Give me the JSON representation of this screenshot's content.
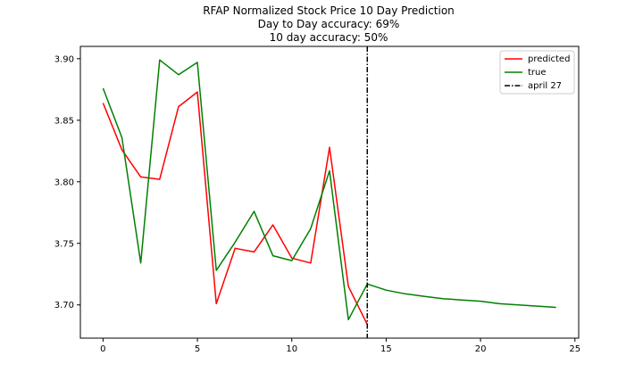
{
  "chart_data": {
    "type": "line",
    "title": [
      "RFAP Normalized Stock Price 10 Day Prediction",
      "Day to Day accuracy: 69%",
      "10 day accuracy: 50%"
    ],
    "xlabel": "",
    "ylabel": "",
    "xlim": [
      -1.2,
      25.2
    ],
    "ylim": [
      3.673,
      3.91
    ],
    "xticks": [
      0,
      5,
      10,
      15,
      20,
      25
    ],
    "yticks": [
      3.7,
      3.75,
      3.8,
      3.85,
      3.9
    ],
    "xtick_labels": [
      "0",
      "5",
      "10",
      "15",
      "20",
      "25"
    ],
    "ytick_labels": [
      "3.70",
      "3.75",
      "3.80",
      "3.85",
      "3.90"
    ],
    "grid": false,
    "legend_position": "upper right",
    "series": [
      {
        "name": "predicted",
        "color": "#ff0000",
        "x": [
          0,
          1,
          2,
          3,
          4,
          5,
          6,
          7,
          8,
          9,
          10,
          11,
          12,
          13,
          14
        ],
        "y": [
          3.864,
          3.826,
          3.804,
          3.802,
          3.861,
          3.873,
          3.701,
          3.746,
          3.743,
          3.765,
          3.738,
          3.734,
          3.828,
          3.715,
          3.684
        ]
      },
      {
        "name": "true",
        "color": "#008000",
        "x": [
          0,
          1,
          2,
          3,
          4,
          5,
          6,
          7,
          8,
          9,
          10,
          11,
          12,
          13,
          14,
          15,
          16,
          17,
          18,
          19,
          20,
          21,
          22,
          23,
          24
        ],
        "y": [
          3.876,
          3.836,
          3.734,
          3.899,
          3.887,
          3.897,
          3.728,
          3.751,
          3.776,
          3.74,
          3.736,
          3.762,
          3.809,
          3.688,
          3.717,
          3.712,
          3.709,
          3.707,
          3.705,
          3.704,
          3.703,
          3.701,
          3.7,
          3.699,
          3.698
        ]
      }
    ],
    "vlines": [
      {
        "name": "april 27",
        "x": 14,
        "color": "#000000",
        "style": "dash-dot"
      }
    ]
  }
}
